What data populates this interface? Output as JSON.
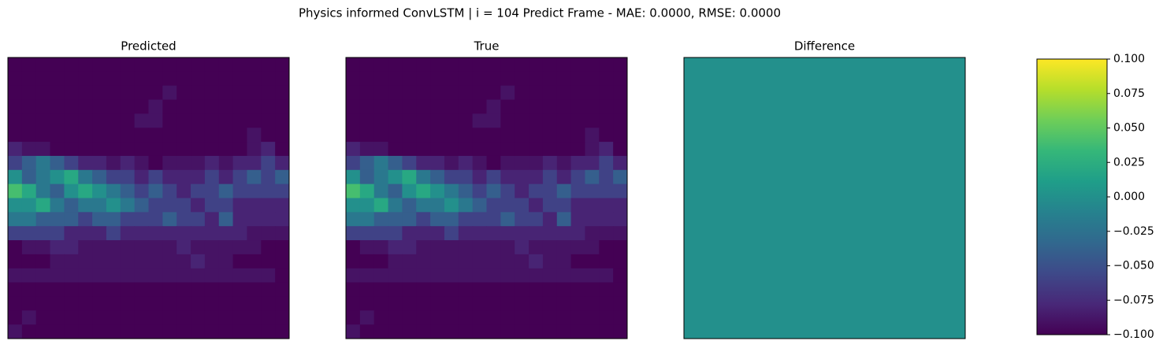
{
  "title": "Physics informed ConvLSTM | i = 104 Predict Frame - MAE: 0.0000, RMSE: 0.0000",
  "cmap_colors": [
    "#440154",
    "#482878",
    "#3e4989",
    "#31688e",
    "#26828e",
    "#1f9e89",
    "#35b779",
    "#6ece58",
    "#b5de2b",
    "#fde725"
  ],
  "chart_data": [
    {
      "type": "heatmap",
      "title": "Predicted",
      "vlim": [
        0,
        1
      ],
      "values": [
        [
          0,
          0,
          0,
          0,
          0,
          0,
          0,
          0,
          0,
          0,
          0,
          0,
          0,
          0,
          0,
          0,
          0,
          0,
          0,
          0
        ],
        [
          0,
          0,
          0,
          0,
          0,
          0,
          0,
          0,
          0,
          0,
          0,
          0,
          0,
          0,
          0,
          0,
          0,
          0,
          0,
          0
        ],
        [
          0,
          0,
          0,
          0,
          0,
          0,
          0,
          0,
          0,
          0,
          0,
          0.05,
          0,
          0,
          0,
          0,
          0,
          0,
          0,
          0
        ],
        [
          0,
          0,
          0,
          0,
          0,
          0,
          0,
          0,
          0,
          0,
          0.05,
          0,
          0,
          0,
          0,
          0,
          0,
          0,
          0,
          0
        ],
        [
          0,
          0,
          0,
          0,
          0,
          0,
          0,
          0,
          0,
          0.05,
          0.05,
          0,
          0,
          0,
          0,
          0,
          0,
          0,
          0,
          0
        ],
        [
          0,
          0,
          0,
          0,
          0,
          0,
          0,
          0,
          0,
          0,
          0,
          0,
          0,
          0,
          0,
          0,
          0,
          0.05,
          0,
          0
        ],
        [
          0.1,
          0.05,
          0.05,
          0,
          0,
          0,
          0,
          0,
          0,
          0,
          0,
          0,
          0,
          0,
          0,
          0,
          0,
          0.05,
          0.1,
          0
        ],
        [
          0.2,
          0.3,
          0.4,
          0.3,
          0.2,
          0.1,
          0.1,
          0.05,
          0.1,
          0.05,
          0,
          0.05,
          0.05,
          0.05,
          0.1,
          0.05,
          0.1,
          0.1,
          0.2,
          0.1
        ],
        [
          0.5,
          0.3,
          0.4,
          0.5,
          0.6,
          0.4,
          0.3,
          0.2,
          0.2,
          0.1,
          0.2,
          0.1,
          0.1,
          0.1,
          0.2,
          0.1,
          0.2,
          0.3,
          0.2,
          0.3
        ],
        [
          0.7,
          0.6,
          0.4,
          0.3,
          0.5,
          0.6,
          0.5,
          0.4,
          0.3,
          0.2,
          0.3,
          0.2,
          0.1,
          0.2,
          0.2,
          0.3,
          0.2,
          0.2,
          0.2,
          0.2
        ],
        [
          0.5,
          0.5,
          0.6,
          0.4,
          0.3,
          0.4,
          0.4,
          0.5,
          0.4,
          0.3,
          0.2,
          0.2,
          0.2,
          0.1,
          0.2,
          0.2,
          0.1,
          0.1,
          0.1,
          0.1
        ],
        [
          0.4,
          0.4,
          0.3,
          0.3,
          0.3,
          0.2,
          0.3,
          0.3,
          0.2,
          0.2,
          0.2,
          0.3,
          0.2,
          0.2,
          0.1,
          0.3,
          0.1,
          0.1,
          0.1,
          0.1
        ],
        [
          0.2,
          0.2,
          0.2,
          0.2,
          0.1,
          0.1,
          0.1,
          0.2,
          0.1,
          0.1,
          0.1,
          0.1,
          0.1,
          0.1,
          0.1,
          0.1,
          0.1,
          0.05,
          0.05,
          0.05
        ],
        [
          0,
          0.05,
          0.05,
          0.1,
          0.1,
          0.05,
          0.05,
          0.05,
          0.05,
          0.05,
          0.05,
          0.05,
          0.1,
          0.05,
          0.05,
          0.05,
          0.05,
          0.05,
          0,
          0
        ],
        [
          0,
          0,
          0,
          0.05,
          0.05,
          0.05,
          0.05,
          0.05,
          0.05,
          0.05,
          0.05,
          0.05,
          0.05,
          0.1,
          0.05,
          0.05,
          0,
          0,
          0,
          0
        ],
        [
          0.05,
          0.05,
          0.05,
          0.05,
          0.05,
          0.05,
          0.05,
          0.05,
          0.05,
          0.05,
          0.05,
          0.05,
          0.05,
          0.05,
          0.05,
          0.05,
          0.05,
          0.05,
          0.05,
          0
        ],
        [
          0,
          0,
          0,
          0,
          0,
          0,
          0,
          0,
          0,
          0,
          0,
          0,
          0,
          0,
          0,
          0,
          0,
          0,
          0,
          0
        ],
        [
          0,
          0,
          0,
          0,
          0,
          0,
          0,
          0,
          0,
          0,
          0,
          0,
          0,
          0,
          0,
          0,
          0,
          0,
          0,
          0
        ],
        [
          0,
          0.05,
          0,
          0,
          0,
          0,
          0,
          0,
          0,
          0,
          0,
          0,
          0,
          0,
          0,
          0,
          0,
          0,
          0,
          0
        ],
        [
          0.05,
          0,
          0,
          0,
          0,
          0,
          0,
          0,
          0,
          0,
          0,
          0,
          0,
          0,
          0,
          0,
          0,
          0,
          0,
          0
        ]
      ]
    },
    {
      "type": "heatmap",
      "title": "True",
      "vlim": [
        0,
        1
      ],
      "values": [
        [
          0,
          0,
          0,
          0,
          0,
          0,
          0,
          0,
          0,
          0,
          0,
          0,
          0,
          0,
          0,
          0,
          0,
          0,
          0,
          0
        ],
        [
          0,
          0,
          0,
          0,
          0,
          0,
          0,
          0,
          0,
          0,
          0,
          0,
          0,
          0,
          0,
          0,
          0,
          0,
          0,
          0
        ],
        [
          0,
          0,
          0,
          0,
          0,
          0,
          0,
          0,
          0,
          0,
          0,
          0.05,
          0,
          0,
          0,
          0,
          0,
          0,
          0,
          0
        ],
        [
          0,
          0,
          0,
          0,
          0,
          0,
          0,
          0,
          0,
          0,
          0.05,
          0,
          0,
          0,
          0,
          0,
          0,
          0,
          0,
          0
        ],
        [
          0,
          0,
          0,
          0,
          0,
          0,
          0,
          0,
          0,
          0.05,
          0.05,
          0,
          0,
          0,
          0,
          0,
          0,
          0,
          0,
          0
        ],
        [
          0,
          0,
          0,
          0,
          0,
          0,
          0,
          0,
          0,
          0,
          0,
          0,
          0,
          0,
          0,
          0,
          0,
          0.05,
          0,
          0
        ],
        [
          0.1,
          0.05,
          0.05,
          0,
          0,
          0,
          0,
          0,
          0,
          0,
          0,
          0,
          0,
          0,
          0,
          0,
          0,
          0.05,
          0.1,
          0
        ],
        [
          0.2,
          0.3,
          0.4,
          0.3,
          0.2,
          0.1,
          0.1,
          0.05,
          0.1,
          0.05,
          0,
          0.05,
          0.05,
          0.05,
          0.1,
          0.05,
          0.1,
          0.1,
          0.2,
          0.1
        ],
        [
          0.5,
          0.3,
          0.4,
          0.5,
          0.6,
          0.4,
          0.3,
          0.2,
          0.2,
          0.1,
          0.2,
          0.1,
          0.1,
          0.1,
          0.2,
          0.1,
          0.2,
          0.3,
          0.2,
          0.3
        ],
        [
          0.7,
          0.6,
          0.4,
          0.3,
          0.5,
          0.6,
          0.5,
          0.4,
          0.3,
          0.2,
          0.3,
          0.2,
          0.1,
          0.2,
          0.2,
          0.3,
          0.2,
          0.2,
          0.2,
          0.2
        ],
        [
          0.5,
          0.5,
          0.6,
          0.4,
          0.3,
          0.4,
          0.4,
          0.5,
          0.4,
          0.3,
          0.2,
          0.2,
          0.2,
          0.1,
          0.2,
          0.2,
          0.1,
          0.1,
          0.1,
          0.1
        ],
        [
          0.4,
          0.4,
          0.3,
          0.3,
          0.3,
          0.2,
          0.3,
          0.3,
          0.2,
          0.2,
          0.2,
          0.3,
          0.2,
          0.2,
          0.1,
          0.3,
          0.1,
          0.1,
          0.1,
          0.1
        ],
        [
          0.2,
          0.2,
          0.2,
          0.2,
          0.1,
          0.1,
          0.1,
          0.2,
          0.1,
          0.1,
          0.1,
          0.1,
          0.1,
          0.1,
          0.1,
          0.1,
          0.1,
          0.05,
          0.05,
          0.05
        ],
        [
          0,
          0.05,
          0.05,
          0.1,
          0.1,
          0.05,
          0.05,
          0.05,
          0.05,
          0.05,
          0.05,
          0.05,
          0.1,
          0.05,
          0.05,
          0.05,
          0.05,
          0.05,
          0,
          0
        ],
        [
          0,
          0,
          0,
          0.05,
          0.05,
          0.05,
          0.05,
          0.05,
          0.05,
          0.05,
          0.05,
          0.05,
          0.05,
          0.1,
          0.05,
          0.05,
          0,
          0,
          0,
          0
        ],
        [
          0.05,
          0.05,
          0.05,
          0.05,
          0.05,
          0.05,
          0.05,
          0.05,
          0.05,
          0.05,
          0.05,
          0.05,
          0.05,
          0.05,
          0.05,
          0.05,
          0.05,
          0.05,
          0.05,
          0
        ],
        [
          0,
          0,
          0,
          0,
          0,
          0,
          0,
          0,
          0,
          0,
          0,
          0,
          0,
          0,
          0,
          0,
          0,
          0,
          0,
          0
        ],
        [
          0,
          0,
          0,
          0,
          0,
          0,
          0,
          0,
          0,
          0,
          0,
          0,
          0,
          0,
          0,
          0,
          0,
          0,
          0,
          0
        ],
        [
          0,
          0.05,
          0,
          0,
          0,
          0,
          0,
          0,
          0,
          0,
          0,
          0,
          0,
          0,
          0,
          0,
          0,
          0,
          0,
          0
        ],
        [
          0.05,
          0,
          0,
          0,
          0,
          0,
          0,
          0,
          0,
          0,
          0,
          0,
          0,
          0,
          0,
          0,
          0,
          0,
          0,
          0
        ]
      ]
    },
    {
      "type": "heatmap",
      "title": "Difference",
      "vlim": [
        -0.1,
        0.1
      ],
      "values": [
        [
          0
        ]
      ],
      "colorbar": {
        "ylim": [
          -0.1,
          0.1
        ],
        "yticks": [
          {
            "value": -0.1,
            "label": "−0.100"
          },
          {
            "value": -0.075,
            "label": "−0.075"
          },
          {
            "value": -0.05,
            "label": "−0.050"
          },
          {
            "value": -0.025,
            "label": "−0.025"
          },
          {
            "value": 0,
            "label": "0.000"
          },
          {
            "value": 0.025,
            "label": "0.025"
          },
          {
            "value": 0.05,
            "label": "0.050"
          },
          {
            "value": 0.075,
            "label": "0.075"
          },
          {
            "value": 0.1,
            "label": "0.100"
          }
        ]
      }
    }
  ]
}
